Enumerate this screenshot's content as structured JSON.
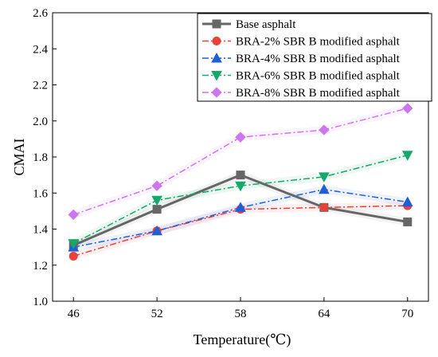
{
  "chart_data": {
    "type": "line",
    "title": "",
    "xlabel": "Temperature(℃)",
    "ylabel": "CMAI",
    "x": [
      46,
      52,
      58,
      64,
      70
    ],
    "x_tick_labels": [
      "46",
      "52",
      "58",
      "64",
      "70"
    ],
    "xlim": [
      44.5,
      71.5
    ],
    "ylim": [
      1.0,
      2.6
    ],
    "y_ticks": [
      1.0,
      1.2,
      1.4,
      1.6,
      1.8,
      2.0,
      2.2,
      2.4,
      2.6
    ],
    "y_tick_labels": [
      "1.0",
      "1.2",
      "1.4",
      "1.6",
      "1.8",
      "2.0",
      "2.2",
      "2.4",
      "2.6"
    ],
    "grid": false,
    "legend_position": "top-right",
    "series": [
      {
        "name": "Base asphalt",
        "values": [
          1.31,
          1.51,
          1.7,
          1.52,
          1.44
        ],
        "color": "#666666",
        "marker": "square",
        "line": "solid"
      },
      {
        "name": "BRA-2% SBR B modified asphalt",
        "values": [
          1.25,
          1.39,
          1.51,
          1.52,
          1.53
        ],
        "color": "#e8413c",
        "marker": "circle",
        "line": "dashdot"
      },
      {
        "name": "BRA-4% SBR B modified asphalt",
        "values": [
          1.3,
          1.39,
          1.52,
          1.62,
          1.55
        ],
        "color": "#1f5fd6",
        "marker": "triangle-up",
        "line": "dashdot"
      },
      {
        "name": "BRA-6% SBR B modified asphalt",
        "values": [
          1.32,
          1.56,
          1.64,
          1.69,
          1.81
        ],
        "color": "#15a86b",
        "marker": "triangle-down",
        "line": "dashdot"
      },
      {
        "name": "BRA-8% SBR B modified asphalt",
        "values": [
          1.48,
          1.64,
          1.91,
          1.95,
          2.07
        ],
        "color": "#cc77ee",
        "marker": "diamond",
        "line": "dashdot"
      }
    ]
  }
}
